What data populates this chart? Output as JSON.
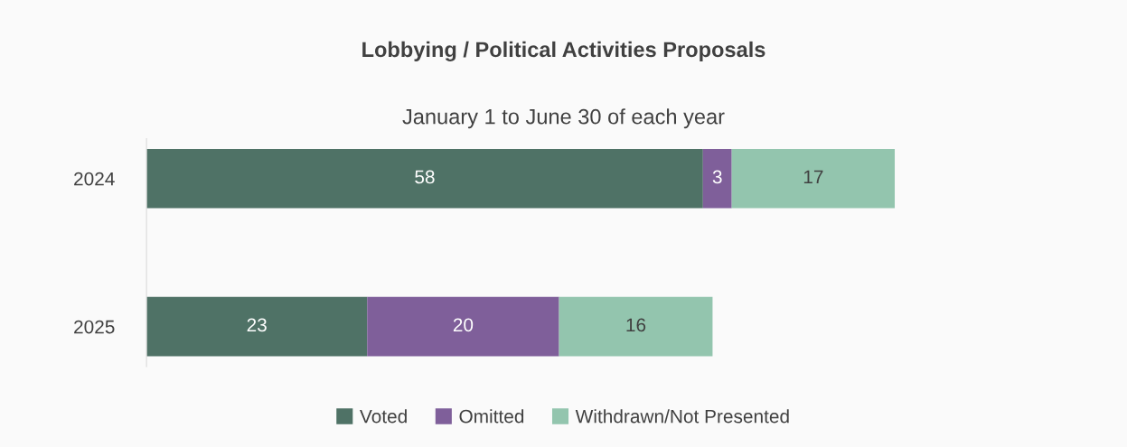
{
  "chart_data": {
    "type": "bar",
    "orientation": "horizontal",
    "stacked": true,
    "title": "Lobbying / Political Activities Proposals",
    "subtitle": "January 1 to June 30 of each year",
    "categories": [
      "2024",
      "2025"
    ],
    "series": [
      {
        "name": "Voted",
        "color": "#4f7266",
        "values": [
          58,
          23
        ]
      },
      {
        "name": "Omitted",
        "color": "#7f5f9a",
        "values": [
          3,
          20
        ]
      },
      {
        "name": "Withdrawn/Not Presented",
        "color": "#93c5ae",
        "values": [
          17,
          16
        ]
      }
    ],
    "data_labels": true,
    "legend": "bottom",
    "grid": false,
    "tick_labels": "y"
  }
}
